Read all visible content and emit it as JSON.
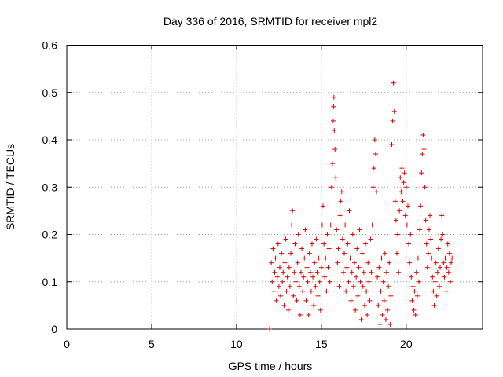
{
  "chart_data": {
    "type": "scatter",
    "title": "Day 336 of 2016, SRMTID for receiver mpl2",
    "xlabel": "GPS time / hours",
    "ylabel": "SRMTID / TECUs",
    "xlim": [
      0,
      24.5
    ],
    "ylim": [
      0,
      0.6
    ],
    "x_ticks": [
      0,
      5,
      10,
      15,
      20
    ],
    "x_tick_labels": [
      "0",
      "5",
      "10",
      "15",
      "20"
    ],
    "y_ticks": [
      0,
      0.1,
      0.2,
      0.3,
      0.4,
      0.5,
      0.6
    ],
    "y_tick_labels": [
      "0",
      "0.1",
      "0.2",
      "0.3",
      "0.4",
      "0.5",
      "0.6"
    ],
    "grid": true,
    "marker": "plus",
    "colors": {
      "points": "#e00000"
    },
    "series": [
      {
        "points": [
          [
            11.95,
            0.0
          ],
          [
            12.05,
            0.14
          ],
          [
            12.1,
            0.1
          ],
          [
            12.15,
            0.17
          ],
          [
            12.2,
            0.08
          ],
          [
            12.25,
            0.12
          ],
          [
            12.3,
            0.15
          ],
          [
            12.35,
            0.06
          ],
          [
            12.4,
            0.11
          ],
          [
            12.45,
            0.18
          ],
          [
            12.5,
            0.09
          ],
          [
            12.55,
            0.13
          ],
          [
            12.6,
            0.07
          ],
          [
            12.65,
            0.16
          ],
          [
            12.7,
            0.1
          ],
          [
            12.75,
            0.12
          ],
          [
            12.8,
            0.05
          ],
          [
            12.85,
            0.14
          ],
          [
            12.9,
            0.19
          ],
          [
            12.95,
            0.08
          ],
          [
            13.0,
            0.11
          ],
          [
            13.05,
            0.04
          ],
          [
            13.1,
            0.13
          ],
          [
            13.15,
            0.09
          ],
          [
            13.2,
            0.16
          ],
          [
            13.25,
            0.22
          ],
          [
            13.3,
            0.25
          ],
          [
            13.35,
            0.07
          ],
          [
            13.4,
            0.12
          ],
          [
            13.45,
            0.18
          ],
          [
            13.5,
            0.1
          ],
          [
            13.55,
            0.06
          ],
          [
            13.6,
            0.14
          ],
          [
            13.65,
            0.2
          ],
          [
            13.7,
            0.09
          ],
          [
            13.75,
            0.03
          ],
          [
            13.8,
            0.12
          ],
          [
            13.85,
            0.17
          ],
          [
            13.9,
            0.08
          ],
          [
            13.95,
            0.11
          ],
          [
            14.0,
            0.15
          ],
          [
            14.05,
            0.21
          ],
          [
            14.1,
            0.06
          ],
          [
            14.15,
            0.13
          ],
          [
            14.2,
            0.1
          ],
          [
            14.25,
            0.03
          ],
          [
            14.3,
            0.16
          ],
          [
            14.35,
            0.12
          ],
          [
            14.4,
            0.08
          ],
          [
            14.45,
            0.18
          ],
          [
            14.5,
            0.11
          ],
          [
            14.55,
            0.05
          ],
          [
            14.6,
            0.14
          ],
          [
            14.65,
            0.09
          ],
          [
            14.7,
            0.19
          ],
          [
            14.75,
            0.12
          ],
          [
            14.8,
            0.07
          ],
          [
            14.85,
            0.15
          ],
          [
            14.9,
            0.1
          ],
          [
            14.95,
            0.04
          ],
          [
            15.0,
            0.13
          ],
          [
            15.05,
            0.22
          ],
          [
            15.1,
            0.26
          ],
          [
            15.15,
            0.18
          ],
          [
            15.2,
            0.11
          ],
          [
            15.25,
            0.15
          ],
          [
            15.3,
            0.08
          ],
          [
            15.35,
            0.2
          ],
          [
            15.4,
            0.13
          ],
          [
            15.45,
            0.17
          ],
          [
            15.5,
            0.1
          ],
          [
            15.55,
            0.22
          ],
          [
            15.6,
            0.3
          ],
          [
            15.65,
            0.35
          ],
          [
            15.7,
            0.44
          ],
          [
            15.72,
            0.47
          ],
          [
            15.74,
            0.49
          ],
          [
            15.76,
            0.42
          ],
          [
            15.8,
            0.38
          ],
          [
            15.85,
            0.32
          ],
          [
            15.9,
            0.21
          ],
          [
            15.95,
            0.14
          ],
          [
            16.0,
            0.17
          ],
          [
            16.05,
            0.09
          ],
          [
            16.1,
            0.24
          ],
          [
            16.15,
            0.27
          ],
          [
            16.2,
            0.29
          ],
          [
            16.25,
            0.19
          ],
          [
            16.3,
            0.12
          ],
          [
            16.35,
            0.16
          ],
          [
            16.4,
            0.22
          ],
          [
            16.45,
            0.08
          ],
          [
            16.5,
            0.13
          ],
          [
            16.55,
            0.18
          ],
          [
            16.6,
            0.1
          ],
          [
            16.65,
            0.25
          ],
          [
            16.7,
            0.15
          ],
          [
            16.75,
            0.06
          ],
          [
            16.8,
            0.12
          ],
          [
            16.85,
            0.2
          ],
          [
            16.9,
            0.09
          ],
          [
            16.95,
            0.14
          ],
          [
            17.0,
            0.04
          ],
          [
            17.05,
            0.11
          ],
          [
            17.1,
            0.17
          ],
          [
            17.15,
            0.07
          ],
          [
            17.2,
            0.13
          ],
          [
            17.25,
            0.21
          ],
          [
            17.3,
            0.1
          ],
          [
            17.35,
            0.02
          ],
          [
            17.4,
            0.16
          ],
          [
            17.45,
            0.09
          ],
          [
            17.5,
            0.12
          ],
          [
            17.55,
            0.05
          ],
          [
            17.6,
            0.18
          ],
          [
            17.65,
            0.08
          ],
          [
            17.7,
            0.03
          ],
          [
            17.75,
            0.14
          ],
          [
            17.8,
            0.1
          ],
          [
            17.85,
            0.06
          ],
          [
            17.9,
            0.19
          ],
          [
            17.95,
            0.12
          ],
          [
            18.0,
            0.22
          ],
          [
            18.05,
            0.3
          ],
          [
            18.1,
            0.34
          ],
          [
            18.15,
            0.4
          ],
          [
            18.2,
            0.37
          ],
          [
            18.25,
            0.29
          ],
          [
            18.3,
            0.11
          ],
          [
            18.35,
            0.05
          ],
          [
            18.4,
            0.13
          ],
          [
            18.45,
            0.01
          ],
          [
            18.5,
            0.08
          ],
          [
            18.55,
            0.15
          ],
          [
            18.6,
            0.03
          ],
          [
            18.65,
            0.1
          ],
          [
            18.7,
            0.06
          ],
          [
            18.75,
            0.16
          ],
          [
            18.8,
            0.02
          ],
          [
            18.85,
            0.12
          ],
          [
            18.9,
            0.04
          ],
          [
            18.95,
            0.09
          ],
          [
            19.0,
            0.14
          ],
          [
            19.05,
            0.01
          ],
          [
            19.1,
            0.07
          ],
          [
            19.15,
            0.39
          ],
          [
            19.2,
            0.44
          ],
          [
            19.25,
            0.52
          ],
          [
            19.3,
            0.46
          ],
          [
            19.35,
            0.27
          ],
          [
            19.4,
            0.23
          ],
          [
            19.45,
            0.16
          ],
          [
            19.5,
            0.2
          ],
          [
            19.55,
            0.12
          ],
          [
            19.6,
            0.25
          ],
          [
            19.65,
            0.32
          ],
          [
            19.7,
            0.29
          ],
          [
            19.75,
            0.34
          ],
          [
            19.8,
            0.27
          ],
          [
            19.85,
            0.31
          ],
          [
            19.9,
            0.33
          ],
          [
            19.95,
            0.24
          ],
          [
            20.0,
            0.3
          ],
          [
            20.05,
            0.22
          ],
          [
            20.1,
            0.26
          ],
          [
            20.15,
            0.18
          ],
          [
            20.2,
            0.14
          ],
          [
            20.25,
            0.2
          ],
          [
            20.3,
            0.11
          ],
          [
            20.35,
            0.06
          ],
          [
            20.4,
            0.09
          ],
          [
            20.45,
            0.04
          ],
          [
            20.5,
            0.08
          ],
          [
            20.55,
            0.03
          ],
          [
            20.6,
            0.12
          ],
          [
            20.65,
            0.07
          ],
          [
            20.7,
            0.15
          ],
          [
            20.75,
            0.1
          ],
          [
            20.8,
            0.21
          ],
          [
            20.85,
            0.26
          ],
          [
            20.9,
            0.33
          ],
          [
            20.95,
            0.37
          ],
          [
            21.0,
            0.41
          ],
          [
            21.05,
            0.38
          ],
          [
            21.1,
            0.3
          ],
          [
            21.15,
            0.23
          ],
          [
            21.2,
            0.18
          ],
          [
            21.25,
            0.13
          ],
          [
            21.3,
            0.16
          ],
          [
            21.35,
            0.21
          ],
          [
            21.4,
            0.24
          ],
          [
            21.45,
            0.19
          ],
          [
            21.5,
            0.15
          ],
          [
            21.55,
            0.11
          ],
          [
            21.6,
            0.08
          ],
          [
            21.65,
            0.05
          ],
          [
            21.7,
            0.1
          ],
          [
            21.75,
            0.14
          ],
          [
            21.8,
            0.07
          ],
          [
            21.85,
            0.12
          ],
          [
            21.9,
            0.17
          ],
          [
            21.95,
            0.09
          ],
          [
            22.0,
            0.13
          ],
          [
            22.05,
            0.19
          ],
          [
            22.1,
            0.24
          ],
          [
            22.15,
            0.2
          ],
          [
            22.2,
            0.14
          ],
          [
            22.25,
            0.11
          ],
          [
            22.3,
            0.15
          ],
          [
            22.35,
            0.08
          ],
          [
            22.4,
            0.13
          ],
          [
            22.45,
            0.18
          ],
          [
            22.5,
            0.12
          ],
          [
            22.55,
            0.16
          ],
          [
            22.6,
            0.1
          ],
          [
            22.65,
            0.14
          ],
          [
            22.7,
            0.15
          ]
        ]
      }
    ]
  }
}
